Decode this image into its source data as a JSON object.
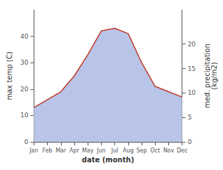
{
  "chart_data": {
    "type": "line",
    "categories": [
      "Jan",
      "Feb",
      "Mar",
      "Apr",
      "May",
      "Jun",
      "Jul",
      "Aug",
      "Sep",
      "Oct",
      "Nov",
      "Dec"
    ],
    "series": [
      {
        "type": "area",
        "color": "#b8c4e8",
        "values": [
          13,
          16,
          19,
          25,
          33,
          42,
          43,
          41,
          30,
          21,
          19,
          17
        ]
      },
      {
        "type": "line",
        "color": "#c0392b",
        "values": [
          13,
          16,
          19,
          25,
          33,
          42,
          43,
          41,
          30,
          21,
          19,
          17
        ]
      }
    ],
    "xlabel": "date (month)",
    "ylabel": "max temp (C)",
    "y2label": "med. precipitation\n(kg/m2)",
    "ylim": [
      0,
      50
    ],
    "yticks": [
      0,
      10,
      20,
      30,
      40
    ],
    "y2lim": [
      0,
      27
    ],
    "y2ticks": [
      0,
      5,
      10,
      15,
      20
    ],
    "grid": false
  }
}
